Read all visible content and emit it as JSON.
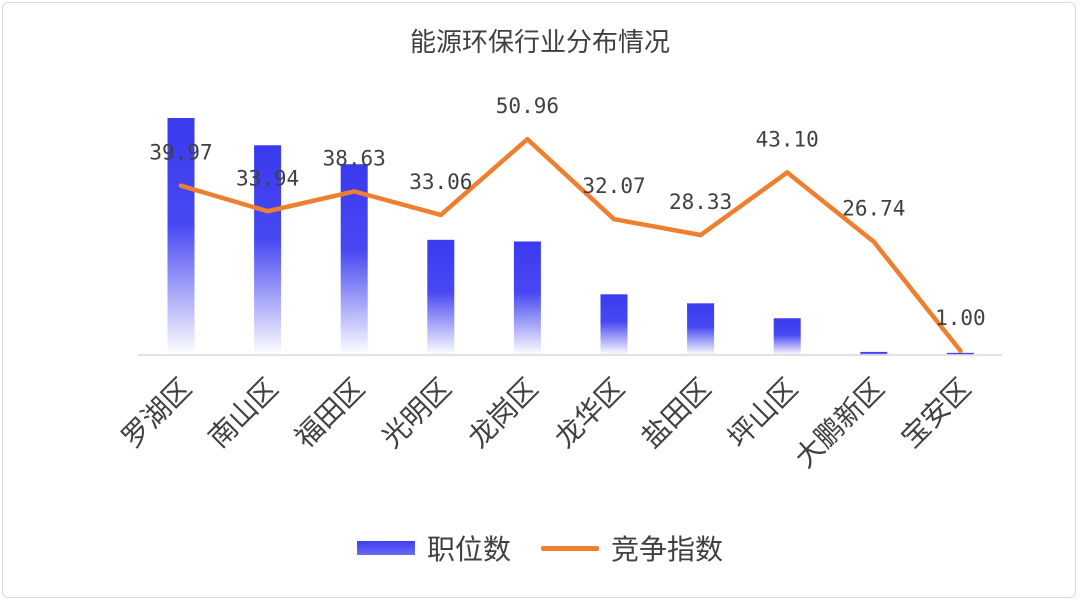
{
  "chart_data": {
    "type": "bar",
    "title": "能源环保行业分布情况",
    "categories": [
      "罗湖区",
      "南山区",
      "福田区",
      "光明区",
      "龙岗区",
      "龙华区",
      "盐田区",
      "坪山区",
      "大鹏新区",
      "宝安区"
    ],
    "series": [
      {
        "name": "职位数",
        "type": "bar",
        "color": "#3f3ff2",
        "values": [
          100,
          88.5,
          80.5,
          48.6,
          47.9,
          25.6,
          21.8,
          15.5,
          1.3,
          0.9
        ]
      },
      {
        "name": "竞争指数",
        "type": "line",
        "color": "#ef7f2f",
        "values": [
          39.97,
          33.94,
          38.63,
          33.06,
          50.96,
          32.07,
          28.33,
          43.1,
          26.74,
          1.0
        ],
        "labels": [
          "39.97",
          "33.94",
          "38.63",
          "33.06",
          "50.96",
          "32.07",
          "28.33",
          "43.10",
          "26.74",
          "1.00"
        ]
      }
    ],
    "bar_ylim": [
      0,
      100
    ],
    "line_ylim": [
      0,
      51
    ],
    "grid": false,
    "legend": "bottom-center"
  }
}
